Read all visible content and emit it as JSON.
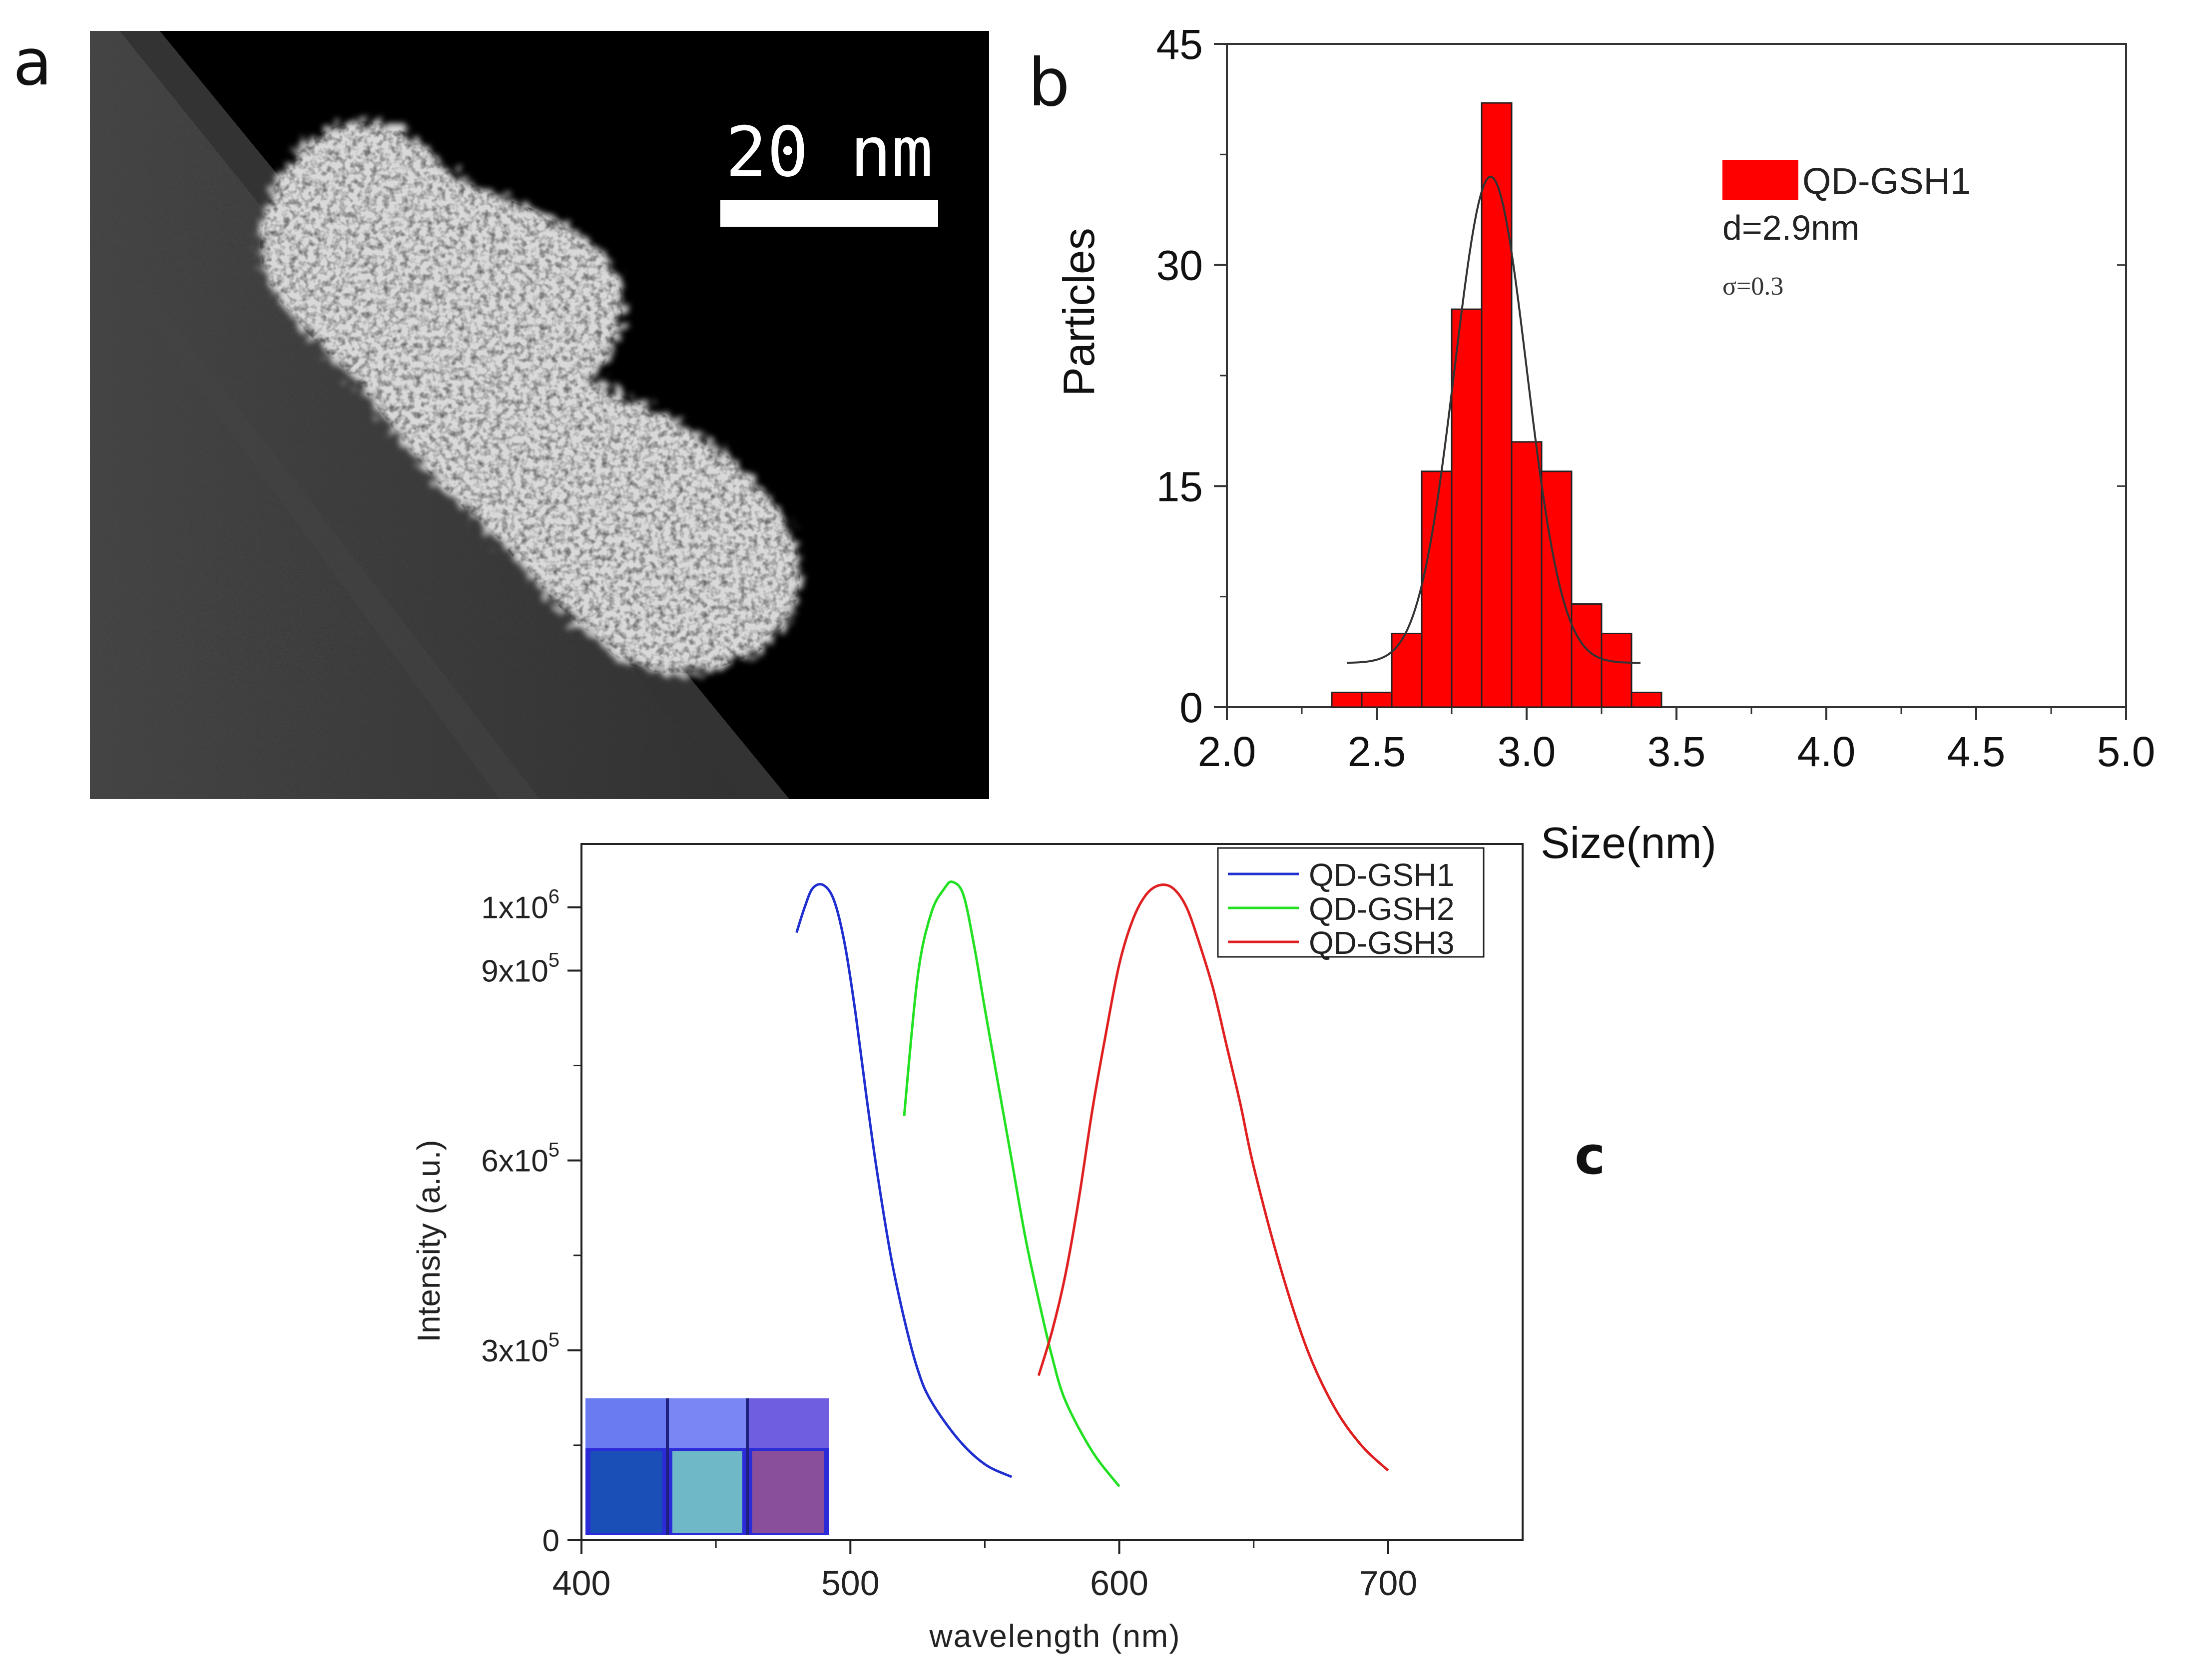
{
  "panel_a": {
    "letter": "a",
    "scale_bar_label": "20 nm",
    "image_kind": "tem-micrograph"
  },
  "panel_b": {
    "letter": "b"
  },
  "panel_c": {
    "letter": "c",
    "inset_kind": "vials-under-uv-photo",
    "inset_vial_colors": [
      "#1a4fb8",
      "#6fb8c8",
      "#8a4f9a"
    ]
  },
  "chart_data": [
    {
      "id": "size-histogram",
      "type": "bar",
      "title": "",
      "xlabel": "Size(nm)",
      "ylabel": "Particles",
      "xlim": [
        2.0,
        5.0
      ],
      "ylim": [
        0,
        45
      ],
      "xticks": [
        "2.0",
        "2.5",
        "3.0",
        "3.5",
        "4.0",
        "4.5",
        "5.0"
      ],
      "yticks": [
        "0",
        "15",
        "30",
        "45"
      ],
      "bin_width": 0.1,
      "bin_centers": [
        2.4,
        2.5,
        2.6,
        2.7,
        2.8,
        2.9,
        3.0,
        3.1,
        3.2,
        3.3,
        3.4
      ],
      "values": [
        1,
        1,
        5,
        16,
        27,
        41,
        18,
        16,
        7,
        5,
        1
      ],
      "bar_color": "#ff0000",
      "fit": {
        "type": "gaussian",
        "mean": 2.88,
        "sigma": 0.12,
        "amplitude": 33,
        "baseline": 3,
        "x_range": [
          2.4,
          3.38
        ],
        "color": "#333333"
      },
      "legend": {
        "label": "QD-GSH1",
        "placement": "top-right"
      },
      "annotations": [
        "d=2.9nm",
        "σ=0.3"
      ]
    },
    {
      "id": "pl-spectra",
      "type": "line",
      "title": "",
      "xlabel": "wavelength (nm)",
      "ylabel": "Intensity (a.u.)",
      "xlim": [
        400,
        750
      ],
      "ylim": [
        0,
        1100000
      ],
      "xticks": [
        "400",
        "500",
        "600",
        "700"
      ],
      "yticks": [
        {
          "base": "0",
          "exp": ""
        },
        {
          "base": "3x10",
          "exp": "5"
        },
        {
          "base": "6x10",
          "exp": "5"
        },
        {
          "base": "9x10",
          "exp": "5"
        },
        {
          "base": "1x10",
          "exp": "6"
        }
      ],
      "legend_placement": "top-right",
      "series": [
        {
          "name": "QD-GSH1",
          "color": "#1f2fd0",
          "x": [
            480,
            483,
            486,
            490,
            494,
            498,
            502,
            506,
            510,
            515,
            520,
            525,
            530,
            540,
            550,
            560
          ],
          "y": [
            960000,
            1000000,
            1030000,
            1035000,
            1010000,
            940000,
            830000,
            700000,
            580000,
            450000,
            350000,
            270000,
            220000,
            160000,
            120000,
            100000
          ]
        },
        {
          "name": "QD-GSH2",
          "color": "#22e022",
          "x": [
            520,
            525,
            530,
            535,
            538,
            542,
            546,
            550,
            555,
            560,
            565,
            570,
            575,
            580,
            590,
            600
          ],
          "y": [
            670000,
            890000,
            990000,
            1030000,
            1040000,
            1020000,
            940000,
            840000,
            720000,
            600000,
            480000,
            380000,
            290000,
            220000,
            140000,
            85000
          ]
        },
        {
          "name": "QD-GSH3",
          "color": "#e02020",
          "x": [
            570,
            575,
            580,
            585,
            590,
            595,
            600,
            605,
            610,
            615,
            620,
            625,
            630,
            635,
            640,
            645,
            650,
            660,
            670,
            680,
            690,
            700
          ],
          "y": [
            260000,
            330000,
            420000,
            540000,
            680000,
            800000,
            910000,
            980000,
            1020000,
            1035000,
            1030000,
            1000000,
            940000,
            870000,
            780000,
            690000,
            590000,
            430000,
            300000,
            210000,
            150000,
            110000
          ]
        }
      ]
    }
  ]
}
